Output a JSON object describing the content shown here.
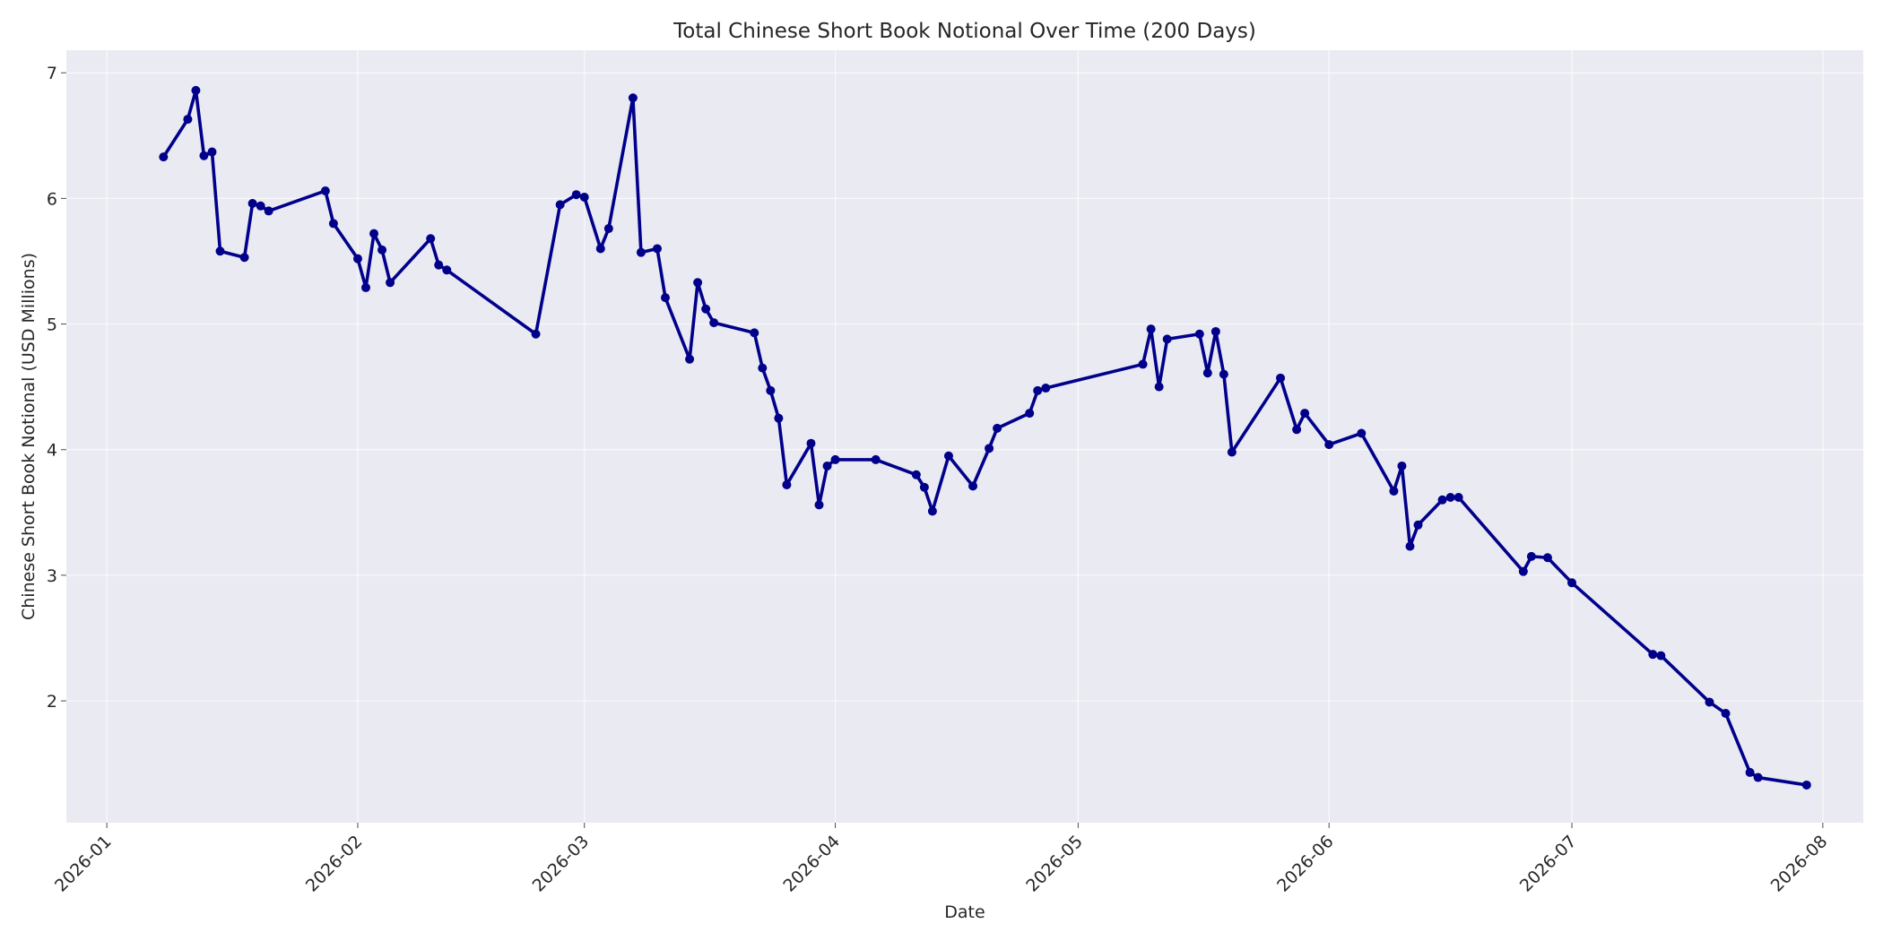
{
  "chart_data": {
    "type": "line",
    "title": "Total Chinese Short Book Notional Over Time (200 Days)",
    "xlabel": "Date",
    "ylabel": "Chinese Short Book Notional (USD Millions)",
    "x_tick_labels": [
      "2026-01",
      "2026-02",
      "2026-03",
      "2026-04",
      "2026-05",
      "2026-06",
      "2026-07",
      "2026-08"
    ],
    "x_tick_dates": [
      "2026-01-01",
      "2026-02-01",
      "2026-03-01",
      "2026-04-01",
      "2026-05-01",
      "2026-06-01",
      "2026-07-01",
      "2026-08-01"
    ],
    "xlim": [
      "2025-12-27",
      "2026-08-06"
    ],
    "y_ticks": [
      2,
      3,
      4,
      5,
      6,
      7
    ],
    "ylim": [
      1.03,
      7.18
    ],
    "grid": true,
    "background": "#eaeaf2",
    "line_color": "#00008b",
    "series": [
      {
        "x": [
          "2026-01-08",
          "2026-01-11",
          "2026-01-12",
          "2026-01-13",
          "2026-01-14",
          "2026-01-15",
          "2026-01-18",
          "2026-01-19",
          "2026-01-20",
          "2026-01-21",
          "2026-01-28",
          "2026-01-29",
          "2026-02-01",
          "2026-02-02",
          "2026-02-03",
          "2026-02-04",
          "2026-02-05",
          "2026-02-10",
          "2026-02-11",
          "2026-02-12",
          "2026-02-23",
          "2026-02-26",
          "2026-02-28",
          "2026-03-01",
          "2026-03-03",
          "2026-03-04",
          "2026-03-07",
          "2026-03-08",
          "2026-03-10",
          "2026-03-11",
          "2026-03-14",
          "2026-03-15",
          "2026-03-16",
          "2026-03-17",
          "2026-03-22",
          "2026-03-23",
          "2026-03-24",
          "2026-03-25",
          "2026-03-26",
          "2026-03-29",
          "2026-03-30",
          "2026-03-31",
          "2026-04-01",
          "2026-04-06",
          "2026-04-11",
          "2026-04-12",
          "2026-04-13",
          "2026-04-15",
          "2026-04-18",
          "2026-04-20",
          "2026-04-21",
          "2026-04-25",
          "2026-04-26",
          "2026-04-27",
          "2026-05-09",
          "2026-05-10",
          "2026-05-11",
          "2026-05-12",
          "2026-05-16",
          "2026-05-17",
          "2026-05-18",
          "2026-05-19",
          "2026-05-20",
          "2026-05-26",
          "2026-05-28",
          "2026-05-29",
          "2026-06-01",
          "2026-06-05",
          "2026-06-09",
          "2026-06-10",
          "2026-06-11",
          "2026-06-12",
          "2026-06-15",
          "2026-06-16",
          "2026-06-17",
          "2026-06-25",
          "2026-06-26",
          "2026-06-28",
          "2026-07-01",
          "2026-07-11",
          "2026-07-12",
          "2026-07-18",
          "2026-07-20",
          "2026-07-23",
          "2026-07-24",
          "2026-07-30"
        ],
        "values": [
          6.33,
          6.63,
          6.86,
          6.34,
          6.37,
          5.58,
          5.53,
          5.96,
          5.94,
          5.9,
          6.06,
          5.8,
          5.52,
          5.29,
          5.72,
          5.59,
          5.33,
          5.68,
          5.47,
          5.43,
          4.92,
          5.95,
          6.03,
          6.01,
          5.6,
          5.76,
          6.8,
          5.57,
          5.6,
          5.21,
          4.72,
          5.33,
          5.12,
          5.01,
          4.93,
          4.65,
          4.47,
          4.25,
          3.72,
          4.05,
          3.56,
          3.87,
          3.92,
          3.92,
          3.8,
          3.7,
          3.51,
          3.95,
          3.71,
          4.01,
          4.17,
          4.29,
          4.47,
          4.49,
          4.68,
          4.96,
          4.5,
          4.88,
          4.92,
          4.61,
          4.94,
          4.6,
          3.98,
          4.57,
          4.16,
          4.29,
          4.04,
          4.13,
          3.67,
          3.87,
          3.23,
          3.4,
          3.6,
          3.62,
          3.62,
          3.03,
          3.15,
          3.14,
          2.94,
          2.37,
          2.36,
          1.99,
          1.9,
          1.43,
          1.39,
          1.33
        ]
      }
    ]
  }
}
